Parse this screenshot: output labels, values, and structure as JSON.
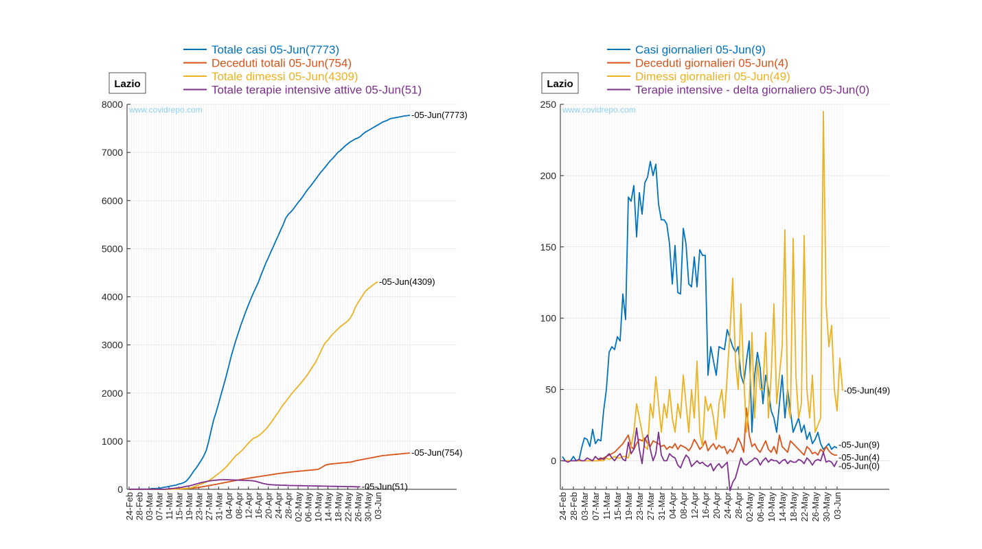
{
  "chart_data": [
    {
      "type": "line",
      "region_label": "Lazio",
      "watermark": "www.covidrepo.com",
      "ylim": [
        0,
        8000
      ],
      "yticks": [
        0,
        1000,
        2000,
        3000,
        4000,
        5000,
        6000,
        7000,
        8000
      ],
      "grid": true,
      "legend_placement": "top",
      "x_tick_labels": [
        "24-Feb",
        "28-Feb",
        "03-Mar",
        "07-Mar",
        "11-Mar",
        "15-Mar",
        "19-Mar",
        "23-Mar",
        "27-Mar",
        "31-Mar",
        "04-Apr",
        "08-Apr",
        "12-Apr",
        "16-Apr",
        "20-Apr",
        "24-Apr",
        "28-Apr",
        "02-May",
        "06-May",
        "10-May",
        "14-May",
        "18-May",
        "22-May",
        "26-May",
        "30-May",
        "03-Jun"
      ],
      "series": [
        {
          "name": "Totale casi 05-Jun(7773)",
          "end_label": "05-Jun(7773)",
          "color": "#0072BD",
          "values": [
            3,
            3,
            3,
            3,
            6,
            6,
            6,
            6,
            6,
            15,
            15,
            17,
            23,
            30,
            41,
            49,
            58,
            70,
            80,
            90,
            110,
            120,
            140,
            170,
            230,
            300,
            380,
            440,
            520,
            600,
            690,
            800,
            990,
            1220,
            1440,
            1600,
            1780,
            1970,
            2150,
            2340,
            2540,
            2750,
            2930,
            3100,
            3260,
            3420,
            3560,
            3700,
            3830,
            3960,
            4080,
            4190,
            4300,
            4440,
            4570,
            4700,
            4810,
            4930,
            5040,
            5160,
            5270,
            5390,
            5500,
            5630,
            5710,
            5760,
            5820,
            5890,
            5960,
            6020,
            6090,
            6170,
            6240,
            6300,
            6370,
            6440,
            6510,
            6580,
            6640,
            6700,
            6770,
            6830,
            6880,
            6940,
            7000,
            7040,
            7090,
            7140,
            7180,
            7220,
            7250,
            7280,
            7300,
            7330,
            7380,
            7420,
            7450,
            7480,
            7510,
            7540,
            7570,
            7600,
            7630,
            7650,
            7670,
            7700,
            7710,
            7720,
            7730,
            7740,
            7750,
            7760,
            7765,
            7773
          ]
        },
        {
          "name": "Deceduti totali 05-Jun(754)",
          "end_label": "05-Jun(754)",
          "color": "#D95319",
          "values": [
            0,
            0,
            0,
            0,
            0,
            0,
            0,
            0,
            0,
            0,
            0,
            0,
            0,
            0,
            1,
            2,
            3,
            4,
            5,
            6,
            8,
            10,
            12,
            15,
            18,
            22,
            27,
            33,
            40,
            48,
            57,
            66,
            75,
            84,
            94,
            104,
            114,
            124,
            134,
            144,
            154,
            164,
            174,
            184,
            194,
            203,
            212,
            221,
            230,
            238,
            246,
            254,
            262,
            270,
            278,
            286,
            294,
            302,
            310,
            318,
            326,
            333,
            340,
            346,
            352,
            358,
            364,
            369,
            374,
            379,
            384,
            389,
            394,
            399,
            404,
            409,
            414,
            440,
            470,
            500,
            515,
            525,
            530,
            535,
            540,
            545,
            550,
            555,
            560,
            565,
            575,
            590,
            600,
            610,
            620,
            630,
            640,
            650,
            660,
            670,
            680,
            690,
            700,
            705,
            710,
            715,
            720,
            725,
            730,
            735,
            740,
            745,
            750,
            754
          ]
        },
        {
          "name": "Totale dimessi 05-Jun(4309)",
          "end_label": "05-Jun(4309)",
          "color": "#EDB120",
          "values": [
            0,
            0,
            0,
            0,
            0,
            0,
            0,
            0,
            0,
            0,
            0,
            0,
            0,
            0,
            0,
            0,
            2,
            3,
            5,
            8,
            10,
            12,
            15,
            18,
            20,
            30,
            50,
            70,
            90,
            110,
            130,
            150,
            180,
            210,
            250,
            290,
            330,
            370,
            410,
            460,
            520,
            580,
            640,
            700,
            740,
            790,
            840,
            900,
            960,
            1010,
            1060,
            1080,
            1110,
            1150,
            1200,
            1250,
            1310,
            1380,
            1450,
            1530,
            1600,
            1680,
            1760,
            1820,
            1890,
            1960,
            2020,
            2080,
            2140,
            2200,
            2260,
            2330,
            2400,
            2480,
            2560,
            2640,
            2740,
            2850,
            2960,
            3050,
            3100,
            3170,
            3230,
            3280,
            3330,
            3380,
            3420,
            3460,
            3500,
            3560,
            3650,
            3780,
            3870,
            3950,
            4030,
            4110,
            4160,
            4200,
            4240,
            4280,
            4309
          ]
        },
        {
          "name": "Totale terapie intensive attive 05-Jun(51)",
          "end_label": "05-Jun(51)",
          "color": "#7E2F8E",
          "values": [
            0,
            0,
            0,
            0,
            0,
            0,
            0,
            0,
            0,
            0,
            0,
            0,
            0,
            0,
            0,
            5,
            10,
            15,
            20,
            25,
            30,
            40,
            50,
            60,
            70,
            80,
            95,
            110,
            125,
            140,
            150,
            160,
            170,
            180,
            185,
            190,
            195,
            198,
            200,
            200,
            198,
            196,
            194,
            192,
            190,
            188,
            186,
            184,
            182,
            180,
            175,
            165,
            150,
            135,
            120,
            110,
            100,
            95,
            92,
            90,
            88,
            86,
            84,
            82,
            80,
            79,
            78,
            77,
            76,
            75,
            74,
            73,
            72,
            71,
            70,
            69,
            68,
            67,
            66,
            65,
            64,
            63,
            62,
            61,
            60,
            59,
            58,
            57,
            56,
            55,
            54,
            53,
            52,
            51
          ]
        }
      ]
    },
    {
      "type": "line",
      "region_label": "Lazio",
      "watermark": "www.covidrepo.com",
      "ylim": [
        -20,
        250
      ],
      "yticks": [
        0,
        50,
        100,
        150,
        200,
        250
      ],
      "grid": true,
      "legend_placement": "top",
      "x_tick_labels": [
        "24-Feb",
        "28-Feb",
        "03-Mar",
        "07-Mar",
        "11-Mar",
        "15-Mar",
        "19-Mar",
        "23-Mar",
        "27-Mar",
        "31-Mar",
        "04-Apr",
        "08-Apr",
        "12-Apr",
        "16-Apr",
        "20-Apr",
        "24-Apr",
        "28-Apr",
        "02-May",
        "06-May",
        "10-May",
        "14-May",
        "18-May",
        "22-May",
        "26-May",
        "30-May",
        "03-Jun"
      ],
      "series": [
        {
          "name": "Casi giornalieri 05-Jun(9)",
          "end_label": "05-Jun(9)",
          "color": "#0072BD",
          "values": [
            3,
            0,
            0,
            0,
            3,
            0,
            0,
            9,
            16,
            15,
            10,
            22,
            12,
            15,
            14,
            35,
            50,
            76,
            80,
            78,
            87,
            84,
            117,
            99,
            185,
            182,
            193,
            157,
            188,
            173,
            195,
            199,
            210,
            200,
            208,
            180,
            169,
            169,
            166,
            152,
            124,
            151,
            118,
            117,
            163,
            152,
            124,
            122,
            143,
            122,
            148,
            144,
            144,
            60,
            80,
            70,
            60,
            80,
            79,
            78,
            92,
            86,
            80,
            76,
            80,
            60,
            54,
            70,
            84,
            20,
            60,
            76,
            65,
            40,
            60,
            50,
            35,
            30,
            20,
            40,
            60,
            30,
            50,
            35,
            20,
            25,
            30,
            20,
            25,
            15,
            20,
            12,
            15,
            20,
            12,
            8,
            10,
            12,
            8,
            10,
            9
          ]
        },
        {
          "name": "Deceduti giornalieri 05-Jun(4)",
          "end_label": "05-Jun(4)",
          "color": "#D95319",
          "values": [
            0,
            0,
            0,
            0,
            0,
            0,
            0,
            0,
            0,
            0,
            0,
            0,
            0,
            0,
            1,
            2,
            3,
            4,
            5,
            6,
            8,
            10,
            12,
            15,
            18,
            10,
            8,
            12,
            15,
            14,
            16,
            12,
            10,
            14,
            13,
            12,
            10,
            11,
            8,
            10,
            9,
            12,
            8,
            11,
            10,
            9,
            7,
            10,
            15,
            12,
            8,
            10,
            14,
            7,
            10,
            12,
            8,
            11,
            9,
            10,
            5,
            8,
            6,
            10,
            16,
            12,
            6,
            37,
            18,
            10,
            12,
            8,
            6,
            10,
            14,
            8,
            6,
            10,
            5,
            18,
            10,
            8,
            6,
            14,
            12,
            10,
            8,
            6,
            4,
            10,
            8,
            5,
            6,
            4,
            8,
            6,
            10,
            7,
            5,
            4,
            4
          ]
        },
        {
          "name": "Dimessi giornalieri 05-Jun(49)",
          "end_label": "05-Jun(49)",
          "color": "#EDB120",
          "values": [
            0,
            0,
            0,
            0,
            0,
            0,
            0,
            0,
            0,
            0,
            0,
            0,
            0,
            0,
            0,
            0,
            2,
            1,
            2,
            3,
            2,
            2,
            3,
            3,
            2,
            10,
            20,
            40,
            30,
            20,
            10,
            8,
            40,
            30,
            59,
            40,
            20,
            40,
            30,
            50,
            30,
            20,
            40,
            30,
            60,
            40,
            20,
            50,
            30,
            70,
            20,
            10,
            45,
            35,
            40,
            30,
            15,
            40,
            50,
            30,
            60,
            90,
            128,
            70,
            50,
            110,
            60,
            20,
            40,
            90,
            30,
            70,
            50,
            50,
            90,
            30,
            60,
            110,
            40,
            60,
            80,
            162,
            40,
            30,
            156,
            60,
            30,
            40,
            158,
            50,
            30,
            60,
            20,
            25,
            30,
            245,
            110,
            80,
            95,
            50,
            35,
            72,
            49
          ]
        },
        {
          "name": "Terapie intensive - delta giornaliero 05-Jun(0)",
          "end_label": "05-Jun(0)",
          "color": "#7E2F8E",
          "values": [
            0,
            0,
            -1,
            0,
            0,
            0,
            1,
            0,
            0,
            2,
            1,
            0,
            3,
            1,
            2,
            1,
            3,
            5,
            2,
            0,
            3,
            5,
            1,
            0,
            13,
            5,
            8,
            23,
            8,
            -2,
            15,
            18,
            8,
            0,
            5,
            20,
            4,
            0,
            0,
            5,
            3,
            2,
            -3,
            -5,
            0,
            4,
            2,
            -4,
            -2,
            0,
            -2,
            -1,
            -3,
            -4,
            -2,
            -7,
            -4,
            -2,
            -5,
            -3,
            -1,
            -21,
            -15,
            -12,
            -5,
            2,
            -2,
            -3,
            -1,
            0,
            2,
            1,
            -3,
            0,
            2,
            -1,
            1,
            0,
            0,
            -2,
            0,
            1,
            -2,
            0,
            -1,
            -1,
            1,
            0,
            -2,
            2,
            0,
            -3,
            0,
            1,
            0,
            6,
            -1,
            0,
            -1,
            -4,
            0
          ]
        }
      ]
    }
  ]
}
